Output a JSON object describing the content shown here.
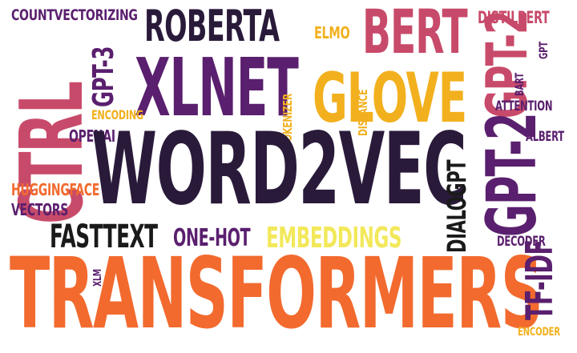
{
  "words": [
    {
      "text": "COUNTVECTORIZING",
      "color": "purple"
    },
    {
      "text": "ROBERTA",
      "color": "dark"
    },
    {
      "text": "ELMO",
      "color": "gold"
    },
    {
      "text": "BERT",
      "color": "rose"
    },
    {
      "text": "DISTILBERT",
      "color": "rose"
    },
    {
      "text": "GPT-3",
      "color": "purple"
    },
    {
      "text": "CTRL",
      "color": "rose"
    },
    {
      "text": "XLNET",
      "color": "purple"
    },
    {
      "text": "GLOVE",
      "color": "gold"
    },
    {
      "text": "GPT-2",
      "color": "rose"
    },
    {
      "text": "GPT",
      "color": "purple"
    },
    {
      "text": "BART",
      "color": "purple"
    },
    {
      "text": "ATTENTION",
      "color": "purple"
    },
    {
      "text": "TOKENIZER",
      "color": "gold"
    },
    {
      "text": "DISTANCE",
      "color": "gold"
    },
    {
      "text": "ENCODING",
      "color": "gold"
    },
    {
      "text": "OPENAI",
      "color": "purple"
    },
    {
      "text": "ALBERT",
      "color": "purple"
    },
    {
      "text": "WORD2VEC",
      "color": "dark"
    },
    {
      "text": "DIALOGPT",
      "color": "black"
    },
    {
      "text": "GPT-2",
      "color": "purple"
    },
    {
      "text": "HUGGINGFACE",
      "color": "orange"
    },
    {
      "text": "VECTORS",
      "color": "purple"
    },
    {
      "text": "FASTTEXT",
      "color": "black"
    },
    {
      "text": "ONE-HOT",
      "color": "purple"
    },
    {
      "text": "EMBEDDINGS",
      "color": "yellow"
    },
    {
      "text": "DECODER",
      "color": "purple"
    },
    {
      "text": "XLM",
      "color": "purple"
    },
    {
      "text": "TRANSFORMERS",
      "color": "orange"
    },
    {
      "text": "TF-IDF",
      "color": "purple"
    },
    {
      "text": "ENCODER",
      "color": "gold"
    }
  ]
}
